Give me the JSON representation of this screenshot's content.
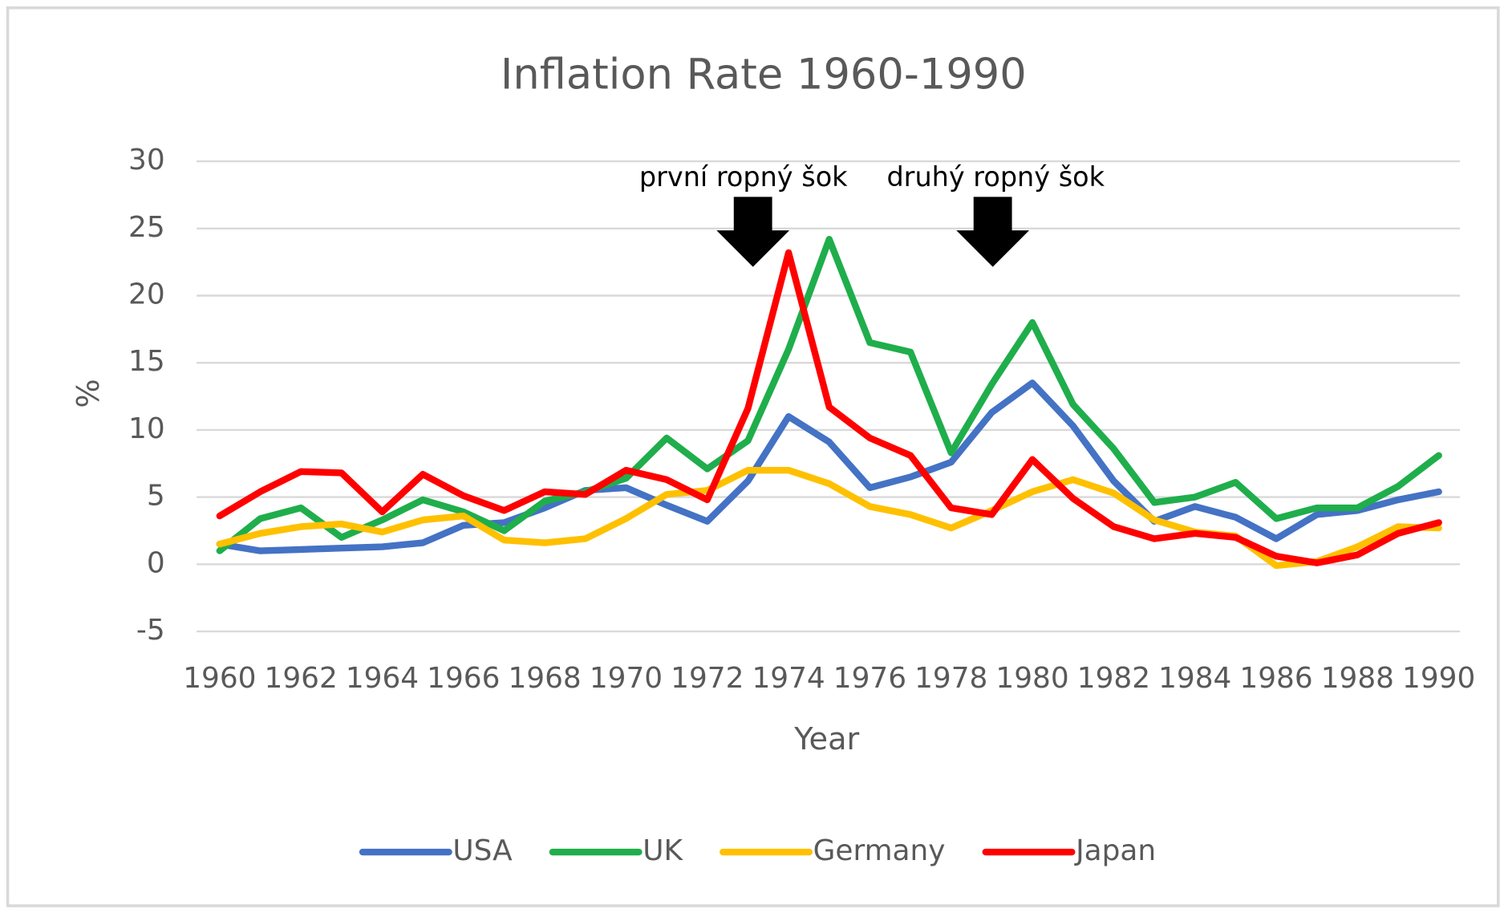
{
  "chart_data": {
    "type": "line",
    "title": "Inflation Rate 1960-1990",
    "x_label": "Year",
    "y_label": "%",
    "x": [
      1960,
      1961,
      1962,
      1963,
      1964,
      1965,
      1966,
      1967,
      1968,
      1969,
      1970,
      1971,
      1972,
      1973,
      1974,
      1975,
      1976,
      1977,
      1978,
      1979,
      1980,
      1981,
      1982,
      1983,
      1984,
      1985,
      1986,
      1987,
      1988,
      1989,
      1990
    ],
    "series": [
      {
        "name": "USA",
        "color": "#4472c4",
        "values": [
          1.5,
          1.0,
          1.1,
          1.2,
          1.3,
          1.6,
          2.9,
          3.1,
          4.2,
          5.5,
          5.7,
          4.4,
          3.2,
          6.2,
          11.0,
          9.1,
          5.7,
          6.5,
          7.6,
          11.3,
          13.5,
          10.3,
          6.2,
          3.2,
          4.3,
          3.5,
          1.9,
          3.7,
          4.0,
          4.8,
          5.4
        ]
      },
      {
        "name": "UK",
        "color": "#1fae4b",
        "values": [
          1.0,
          3.4,
          4.2,
          2.0,
          3.3,
          4.8,
          3.9,
          2.5,
          4.7,
          5.4,
          6.4,
          9.4,
          7.1,
          9.2,
          16.0,
          24.2,
          16.5,
          15.8,
          8.3,
          13.4,
          18.0,
          11.9,
          8.6,
          4.6,
          5.0,
          6.1,
          3.4,
          4.2,
          4.2,
          5.8,
          8.1
        ]
      },
      {
        "name": "Germany",
        "color": "#ffc000",
        "values": [
          1.5,
          2.3,
          2.8,
          3.0,
          2.4,
          3.3,
          3.6,
          1.8,
          1.6,
          1.9,
          3.4,
          5.2,
          5.5,
          7.0,
          7.0,
          6.0,
          4.3,
          3.7,
          2.7,
          4.0,
          5.4,
          6.3,
          5.3,
          3.3,
          2.4,
          2.1,
          -0.1,
          0.2,
          1.3,
          2.8,
          2.7
        ]
      },
      {
        "name": "Japan",
        "color": "#ff0000",
        "values": [
          3.6,
          5.4,
          6.9,
          6.8,
          3.9,
          6.7,
          5.1,
          4.0,
          5.4,
          5.2,
          7.0,
          6.3,
          4.8,
          11.6,
          23.2,
          11.7,
          9.4,
          8.1,
          4.2,
          3.7,
          7.8,
          4.9,
          2.8,
          1.9,
          2.3,
          2.0,
          0.6,
          0.1,
          0.7,
          2.3,
          3.1
        ]
      }
    ],
    "xlim": [
      1960,
      1990
    ],
    "xticks": [
      1960,
      1962,
      1964,
      1966,
      1968,
      1970,
      1972,
      1974,
      1976,
      1978,
      1980,
      1982,
      1984,
      1986,
      1988,
      1990
    ],
    "ylim": [
      -5,
      30
    ],
    "yticks": [
      -5,
      0,
      5,
      10,
      15,
      20,
      25,
      30
    ],
    "grid": true,
    "legend": "bottom",
    "annotations": [
      "první ropný šok",
      "druhý ropný šok"
    ]
  }
}
